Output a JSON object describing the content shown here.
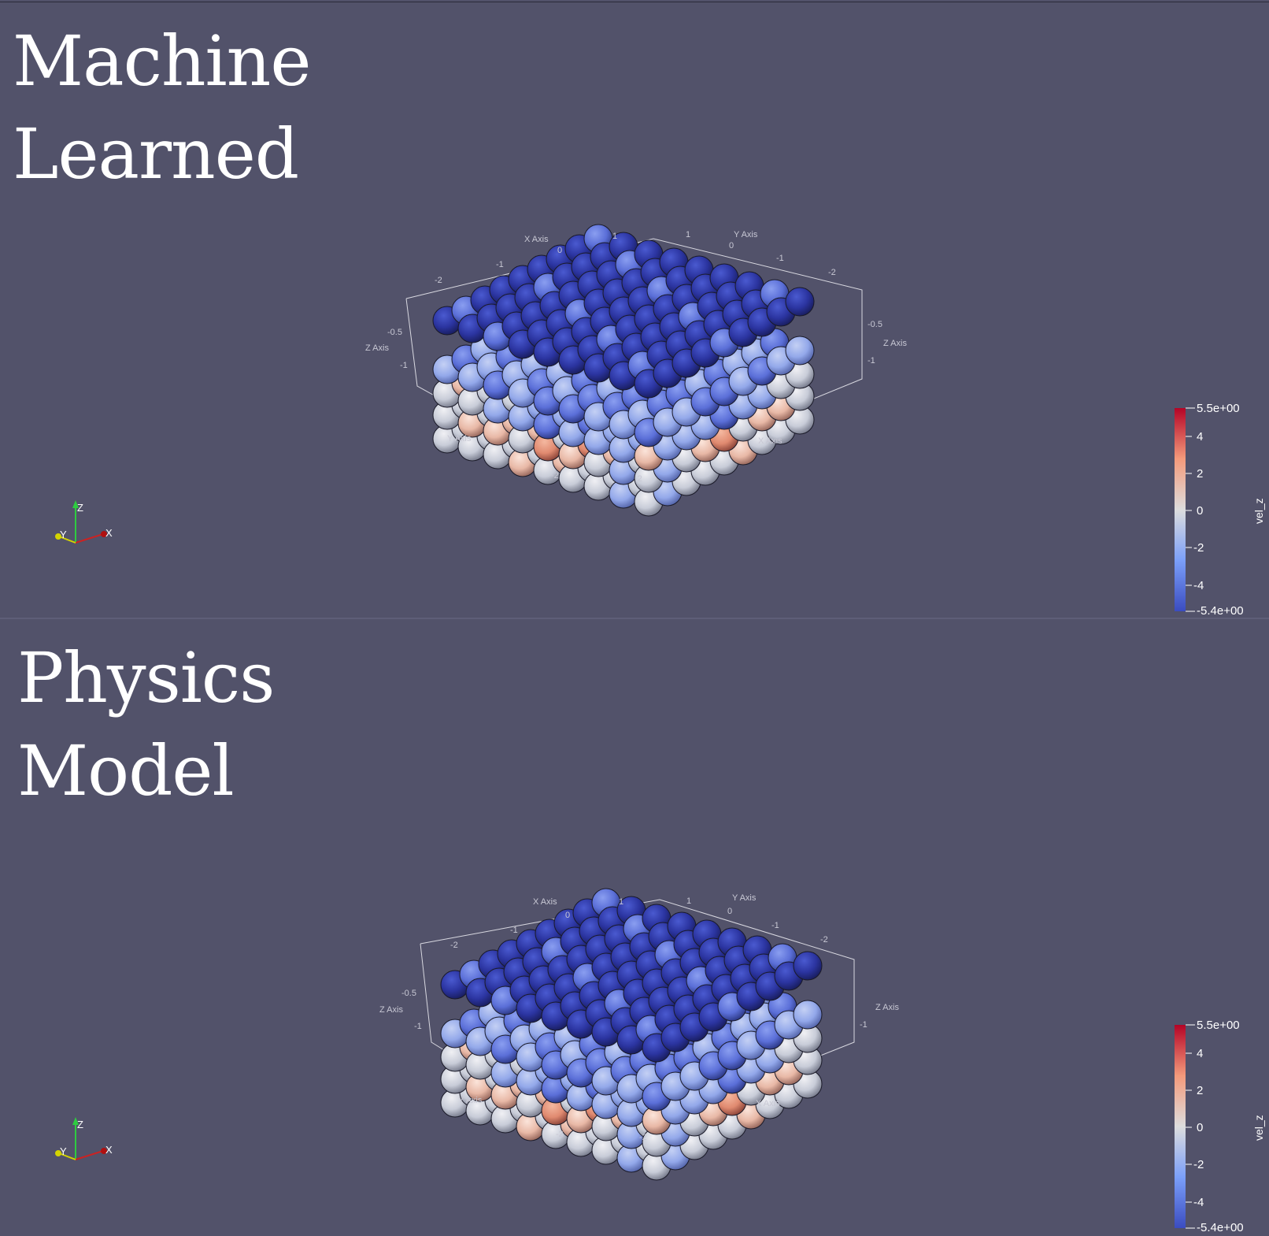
{
  "panels": [
    {
      "title_line1": "Machine",
      "title_line2": "Learned",
      "axes": {
        "x_axis_top": "X Axis",
        "y_axis_top": "Y Axis",
        "z_axis_left": "Z Axis",
        "z_axis_right": "Z Axis",
        "y_axis_bottom": "Y Axis",
        "x_axis_bottom": "X Axis",
        "ticks_x_top": [
          "-2",
          "-1",
          "0",
          "1"
        ],
        "ticks_y_top": [
          "1",
          "0",
          "-1",
          "-2"
        ],
        "ticks_z_left": [
          "-0.5",
          "-1"
        ],
        "ticks_z_right": [
          "-0.5",
          "-1"
        ],
        "ticks_bottom": [
          "-2",
          "-2"
        ]
      },
      "orientation": {
        "z": "Z",
        "y": "Y",
        "x": "X"
      },
      "colorbar": {
        "title": "vel_z",
        "max_label": "5.5e+00",
        "min_label": "-5.4e+00",
        "ticks": [
          "4",
          "2",
          "0",
          "-2",
          "-4"
        ]
      }
    },
    {
      "title_line1": "Physics",
      "title_line2": "Model",
      "axes": {
        "x_axis_top": "X Axis",
        "y_axis_top": "Y Axis",
        "z_axis_left": "Z Axis",
        "z_axis_right": "Z Axis",
        "y_axis_bottom": "Y Axis",
        "x_axis_bottom": "X Axis",
        "ticks_x_top": [
          "-2",
          "-1",
          "0",
          "1"
        ],
        "ticks_y_top": [
          "1",
          "0",
          "-1",
          "-2"
        ],
        "ticks_z_left": [
          "-0.5",
          "-1"
        ],
        "ticks_z_right": [
          "-1"
        ],
        "ticks_bottom": [
          "-2",
          "-2"
        ]
      },
      "orientation": {
        "z": "Z",
        "y": "Y",
        "x": "X"
      },
      "colorbar": {
        "title": "vel_z",
        "max_label": "5.5e+00",
        "min_label": "-5.4e+00",
        "ticks": [
          "4",
          "2",
          "0",
          "-2",
          "-4"
        ]
      }
    }
  ],
  "colors": {
    "background": "#52526a",
    "cmap_low": "#3b4cc0",
    "cmap_mid": "#dddddd",
    "cmap_high": "#b40426"
  }
}
